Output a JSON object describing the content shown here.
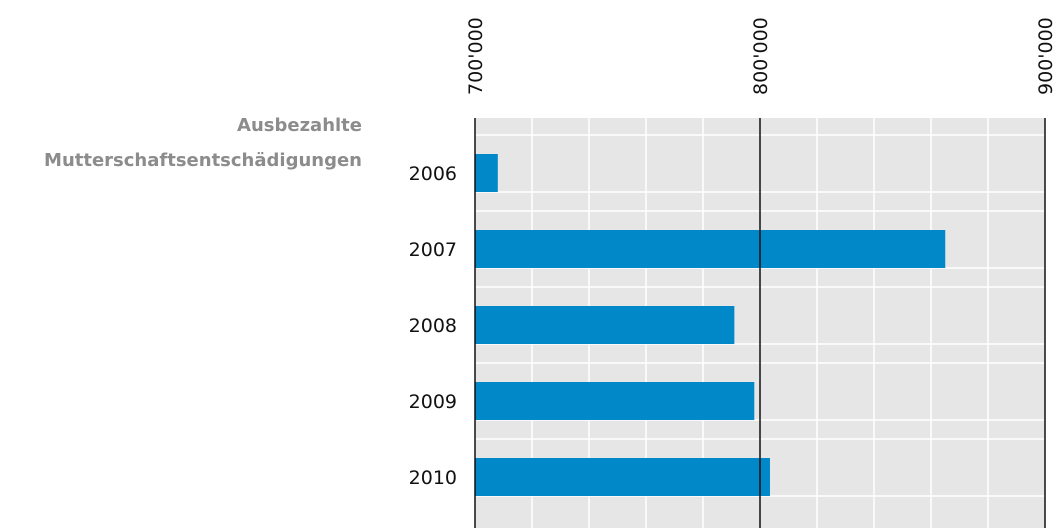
{
  "chart_data": {
    "type": "bar",
    "orientation": "horizontal",
    "title": "Ausbezahlte Mutterschaftsentschädigungen",
    "categories": [
      "2006",
      "2007",
      "2008",
      "2009",
      "2010"
    ],
    "values": [
      708000,
      865000,
      791000,
      798000,
      803500
    ],
    "color": "#0088c8",
    "xlim": [
      700000,
      900000
    ],
    "xticks": [
      {
        "value": 700000,
        "label": "700'000"
      },
      {
        "value": 800000,
        "label": "800'000"
      },
      {
        "value": 900000,
        "label": "900'000"
      }
    ],
    "xminor_ticks": [
      720000,
      740000,
      760000,
      780000,
      820000,
      840000,
      860000,
      880000
    ],
    "grid": true
  }
}
